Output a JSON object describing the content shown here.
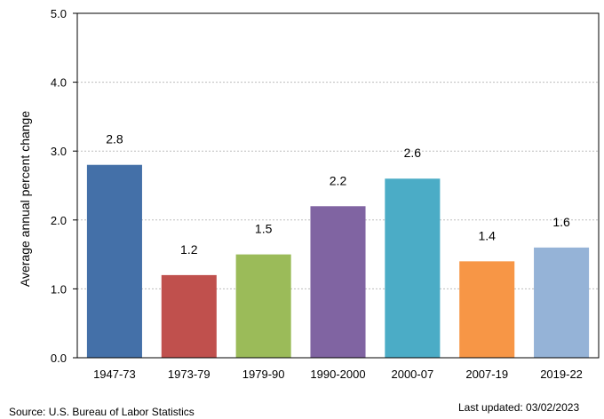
{
  "chart_data": {
    "type": "bar",
    "title": "",
    "xlabel": "",
    "ylabel": "Average annual percent change",
    "categories": [
      "1947-73",
      "1973-79",
      "1979-90",
      "1990-2000",
      "2000-07",
      "2007-19",
      "2019-22"
    ],
    "values": [
      2.8,
      1.2,
      1.5,
      2.2,
      2.6,
      1.4,
      1.6
    ],
    "value_labels": [
      "2.8",
      "1.2",
      "1.5",
      "2.2",
      "2.6",
      "1.4",
      "1.6"
    ],
    "colors": [
      "#4470a8",
      "#c0504d",
      "#9bbb59",
      "#8064a2",
      "#4bacc6",
      "#f79646",
      "#95b3d7"
    ],
    "ylim": [
      0,
      5
    ],
    "yticks": [
      "0.0",
      "1.0",
      "2.0",
      "3.0",
      "4.0",
      "5.0"
    ],
    "grid": true,
    "legend": "none"
  },
  "footer": {
    "source": "Source: U.S. Bureau of Labor Statistics",
    "updated": "Last updated: 03/02/2023"
  }
}
